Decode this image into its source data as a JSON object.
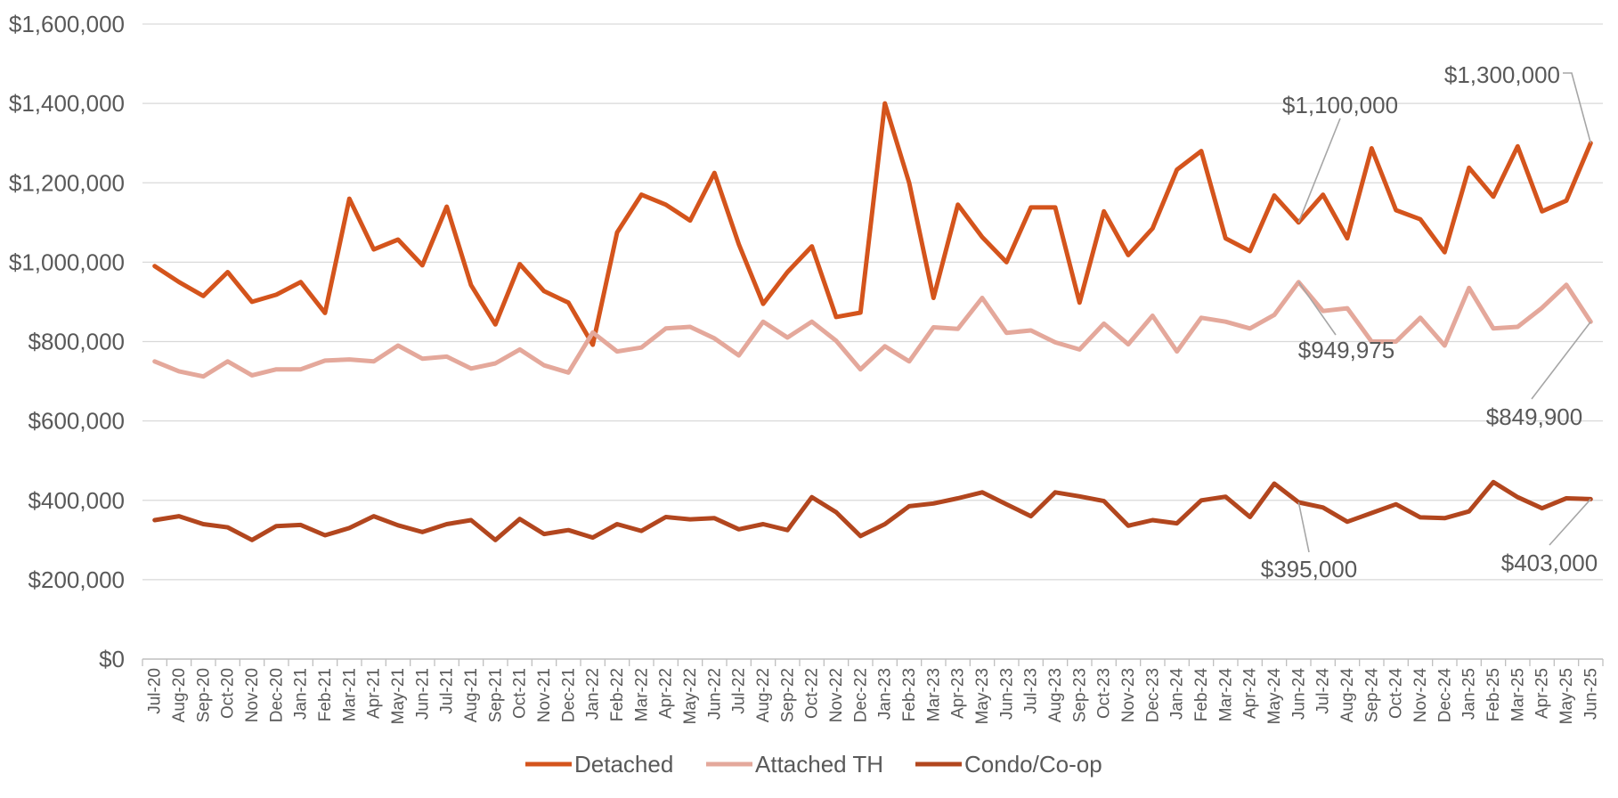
{
  "chart_data": {
    "type": "line",
    "title": "",
    "xlabel": "",
    "ylabel": "",
    "ylim": [
      0,
      1600000
    ],
    "y_ticks": [
      {
        "value": 0,
        "label": "$0"
      },
      {
        "value": 200000,
        "label": "$200,000"
      },
      {
        "value": 400000,
        "label": "$400,000"
      },
      {
        "value": 600000,
        "label": "$600,000"
      },
      {
        "value": 800000,
        "label": "$800,000"
      },
      {
        "value": 1000000,
        "label": "$1,000,000"
      },
      {
        "value": 1200000,
        "label": "$1,200,000"
      },
      {
        "value": 1400000,
        "label": "$1,400,000"
      },
      {
        "value": 1600000,
        "label": "$1,600,000"
      }
    ],
    "grid": true,
    "legend_position": "bottom",
    "categories": [
      "Jul-20",
      "Aug-20",
      "Sep-20",
      "Oct-20",
      "Nov-20",
      "Dec-20",
      "Jan-21",
      "Feb-21",
      "Mar-21",
      "Apr-21",
      "May-21",
      "Jun-21",
      "Jul-21",
      "Aug-21",
      "Sep-21",
      "Oct-21",
      "Nov-21",
      "Dec-21",
      "Jan-22",
      "Feb-22",
      "Mar-22",
      "Apr-22",
      "May-22",
      "Jun-22",
      "Jul-22",
      "Aug-22",
      "Sep-22",
      "Oct-22",
      "Nov-22",
      "Dec-22",
      "Jan-23",
      "Feb-23",
      "Mar-23",
      "Apr-23",
      "May-23",
      "Jun-23",
      "Jul-23",
      "Aug-23",
      "Sep-23",
      "Oct-23",
      "Nov-23",
      "Dec-23",
      "Jan-24",
      "Feb-24",
      "Mar-24",
      "Apr-24",
      "May-24",
      "Jun-24",
      "Jul-24",
      "Aug-24",
      "Sep-24",
      "Oct-24",
      "Nov-24",
      "Dec-24",
      "Jan-25",
      "Feb-25",
      "Mar-25",
      "Apr-25",
      "May-25",
      "Jun-25"
    ],
    "series": [
      {
        "name": "Detached",
        "color": "#d4541c",
        "values": [
          990000,
          950000,
          915000,
          975000,
          900000,
          918000,
          950000,
          872000,
          1160000,
          1032000,
          1057000,
          992000,
          1140000,
          942000,
          843000,
          995000,
          927000,
          898000,
          792000,
          1075000,
          1170000,
          1145000,
          1105000,
          1225000,
          1045000,
          895000,
          975000,
          1040000,
          862000,
          873000,
          1400000,
          1200000,
          910000,
          1145000,
          1063000,
          1000000,
          1138000,
          1138000,
          898000,
          1128000,
          1018000,
          1085000,
          1233000,
          1280000,
          1060000,
          1028000,
          1168000,
          1100000,
          1170000,
          1060000,
          1287000,
          1131000,
          1108000,
          1025000,
          1238000,
          1165000,
          1292000,
          1128000,
          1155000,
          1300000
        ]
      },
      {
        "name": "Attached TH",
        "color": "#e4a89b",
        "values": [
          750000,
          725000,
          712000,
          750000,
          715000,
          730000,
          730000,
          752000,
          755000,
          750000,
          790000,
          757000,
          762000,
          732000,
          745000,
          780000,
          740000,
          722000,
          823000,
          775000,
          785000,
          833000,
          837000,
          808000,
          765000,
          850000,
          810000,
          850000,
          802000,
          730000,
          788000,
          750000,
          836000,
          832000,
          910000,
          822000,
          828000,
          798000,
          780000,
          845000,
          793000,
          865000,
          775000,
          860000,
          850000,
          833000,
          867000,
          949975,
          877000,
          884000,
          800000,
          800000,
          860000,
          790000,
          935000,
          833000,
          837000,
          885000,
          943000,
          849900
        ]
      },
      {
        "name": "Condo/Co-op",
        "color": "#b2461e",
        "values": [
          350000,
          360000,
          340000,
          332000,
          300000,
          335000,
          338000,
          312000,
          330000,
          360000,
          337000,
          320000,
          340000,
          350000,
          300000,
          353000,
          315000,
          325000,
          306000,
          340000,
          323000,
          358000,
          352000,
          355000,
          327000,
          340000,
          325000,
          408000,
          370000,
          310000,
          340000,
          385000,
          392000,
          405000,
          420000,
          390000,
          360000,
          420000,
          410000,
          398000,
          336000,
          350000,
          342000,
          400000,
          409000,
          358000,
          442000,
          395000,
          382000,
          346000,
          368000,
          390000,
          357000,
          355000,
          372000,
          446000,
          408000,
          380000,
          405000,
          403000
        ]
      }
    ],
    "annotations": [
      {
        "label": "$1,100,000",
        "series": 0,
        "index": 47
      },
      {
        "label": "$1,300,000",
        "series": 0,
        "index": 59
      },
      {
        "label": "$949,975",
        "series": 1,
        "index": 47
      },
      {
        "label": "$849,900",
        "series": 1,
        "index": 59
      },
      {
        "label": "$395,000",
        "series": 2,
        "index": 47
      },
      {
        "label": "$403,000",
        "series": 2,
        "index": 59
      }
    ]
  }
}
